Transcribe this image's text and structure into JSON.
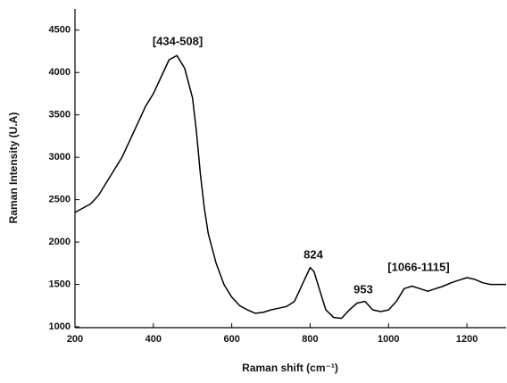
{
  "chart_data": {
    "type": "line",
    "x_label": "Raman shift (cm⁻¹)",
    "y_label": "Raman Intensity (U.A)",
    "color": "#000000",
    "x": [
      200,
      220,
      240,
      260,
      280,
      300,
      320,
      340,
      360,
      380,
      400,
      420,
      440,
      460,
      480,
      500,
      510,
      520,
      530,
      540,
      560,
      580,
      600,
      620,
      640,
      660,
      680,
      700,
      720,
      740,
      760,
      780,
      800,
      810,
      820,
      840,
      860,
      880,
      900,
      920,
      940,
      960,
      980,
      1000,
      1020,
      1040,
      1060,
      1080,
      1100,
      1120,
      1140,
      1160,
      1180,
      1200,
      1220,
      1240,
      1260,
      1280,
      1300
    ],
    "values": [
      2350,
      2400,
      2450,
      2550,
      2700,
      2850,
      3000,
      3200,
      3400,
      3600,
      3750,
      3950,
      4150,
      4200,
      4050,
      3700,
      3300,
      2800,
      2400,
      2100,
      1750,
      1500,
      1350,
      1250,
      1200,
      1160,
      1170,
      1200,
      1220,
      1240,
      1300,
      1500,
      1700,
      1650,
      1500,
      1200,
      1110,
      1100,
      1200,
      1280,
      1300,
      1200,
      1180,
      1200,
      1300,
      1450,
      1480,
      1450,
      1420,
      1450,
      1480,
      1520,
      1550,
      1580,
      1560,
      1520,
      1500,
      1500,
      1500
    ],
    "annotations": [
      "[434-508]",
      "824",
      "953",
      "[1066-1115]"
    ],
    "xlim": [
      200,
      1300
    ],
    "xticks": [
      200,
      400,
      600,
      800,
      1000,
      1200
    ],
    "ylim": [
      990,
      4750
    ],
    "yticks": [
      1000,
      1500,
      2000,
      2500,
      3000,
      3500,
      4000,
      4500
    ],
    "grid": false
  }
}
